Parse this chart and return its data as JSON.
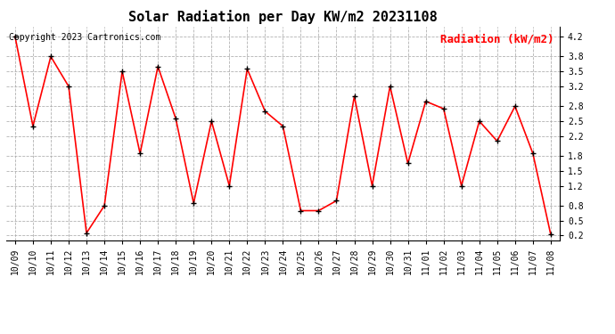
{
  "title": "Solar Radiation per Day KW/m2 20231108",
  "copyright_text": "Copyright 2023 Cartronics.com",
  "legend_label": "Radiation (kW/m2)",
  "dates": [
    "10/09",
    "10/10",
    "10/11",
    "10/12",
    "10/13",
    "10/14",
    "10/15",
    "10/16",
    "10/17",
    "10/18",
    "10/19",
    "10/20",
    "10/21",
    "10/22",
    "10/23",
    "10/24",
    "10/25",
    "10/26",
    "10/27",
    "10/28",
    "10/29",
    "10/30",
    "10/31",
    "11/01",
    "11/02",
    "11/03",
    "11/04",
    "11/05",
    "11/06",
    "11/07",
    "11/08"
  ],
  "values": [
    4.2,
    2.4,
    3.8,
    3.2,
    0.25,
    0.8,
    3.5,
    1.85,
    3.6,
    2.55,
    0.85,
    2.5,
    1.2,
    3.55,
    2.7,
    2.4,
    0.7,
    0.7,
    0.9,
    3.0,
    1.2,
    3.2,
    1.65,
    2.9,
    2.75,
    1.2,
    2.5,
    2.1,
    2.8,
    1.85,
    0.22
  ],
  "line_color": "red",
  "marker_color": "black",
  "background_color": "#ffffff",
  "grid_color": "#aaaaaa",
  "title_fontsize": 11,
  "copyright_fontsize": 7,
  "legend_fontsize": 9,
  "tick_fontsize": 7,
  "ylim": [
    0.1,
    4.4
  ],
  "yticks": [
    0.2,
    0.5,
    0.8,
    1.2,
    1.5,
    1.8,
    2.2,
    2.5,
    2.8,
    3.2,
    3.5,
    3.8,
    4.2
  ]
}
